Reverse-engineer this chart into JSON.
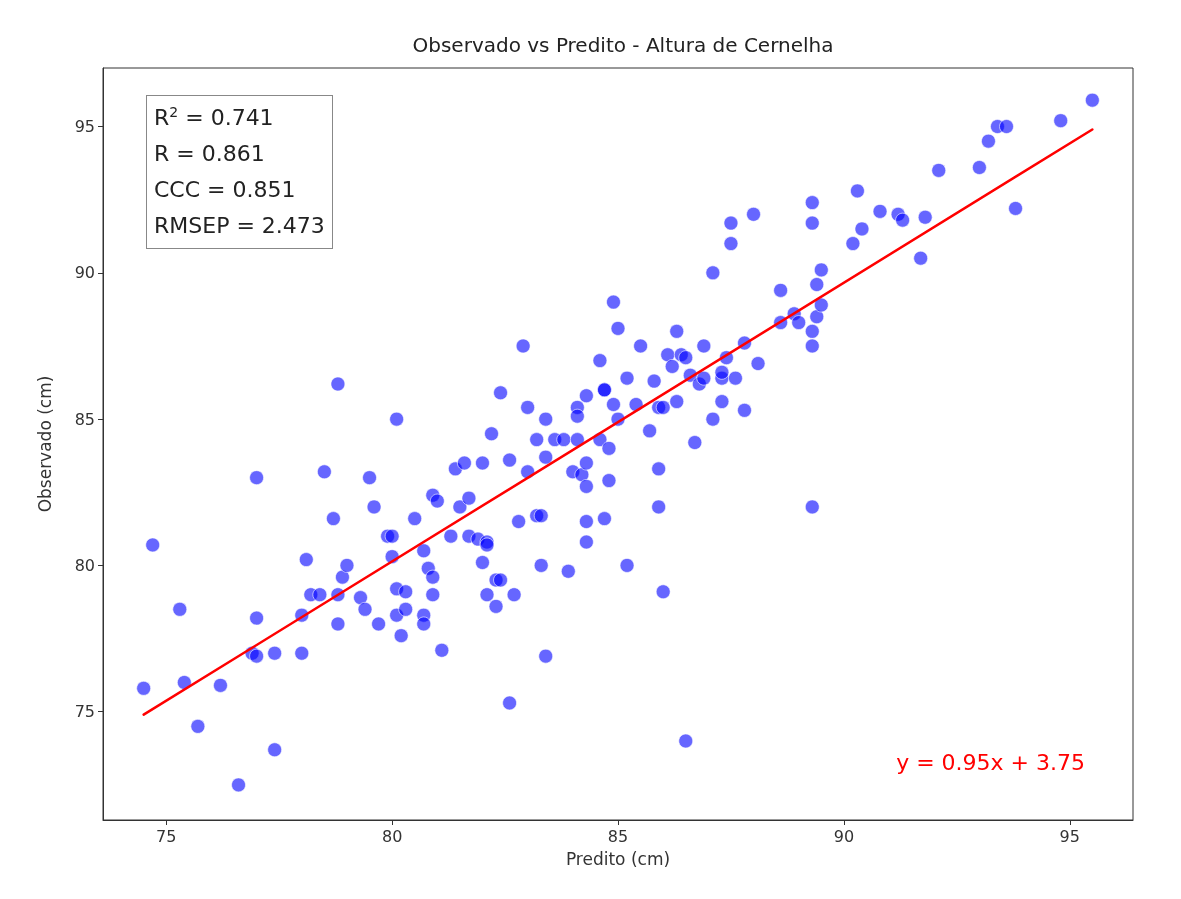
{
  "chart_data": {
    "type": "scatter",
    "title": "Observado vs Predito - Altura de Cernelha",
    "xlabel": "Predito (cm)",
    "ylabel": "Observado (cm)",
    "xlim": [
      73.6,
      96.4
    ],
    "ylim": [
      71.3,
      97
    ],
    "xticks": [
      75,
      80,
      85,
      90,
      95
    ],
    "yticks": [
      75,
      80,
      85,
      90,
      95
    ],
    "grid": false,
    "marker": "circle",
    "annotations": [
      "R$^{2}$ = 0.741\nR = 0.861\nCCC = 0.851\nRMSEP = 2.473",
      "y = 0.95x + 3.75"
    ],
    "series": [
      {
        "color": "#0000ff",
        "x": [
          74.5,
          74.7,
          75.3,
          75.4,
          75.7,
          76.2,
          76.6,
          76.9,
          77.0,
          77.0,
          77.0,
          77.4,
          77.4,
          78.0,
          78.0,
          78.1,
          78.2,
          78.5,
          78.4,
          78.7,
          78.8,
          78.8,
          78.8,
          78.9,
          79.0,
          79.3,
          79.4,
          79.5,
          79.6,
          79.7,
          79.9,
          80.0,
          80.0,
          80.1,
          80.1,
          80.1,
          80.2,
          80.3,
          80.3,
          80.5,
          80.7,
          80.7,
          80.7,
          80.8,
          80.9,
          80.9,
          80.9,
          81.0,
          81.1,
          81.3,
          81.4,
          81.5,
          81.6,
          81.7,
          81.7,
          81.9,
          82.0,
          82.0,
          82.1,
          82.1,
          82.1,
          82.2,
          82.3,
          82.3,
          82.4,
          82.4,
          82.6,
          82.6,
          82.7,
          82.8,
          82.9,
          83.0,
          83.0,
          83.2,
          83.2,
          83.3,
          83.3,
          83.4,
          83.4,
          83.4,
          83.6,
          83.8,
          83.9,
          84.0,
          84.1,
          84.1,
          84.1,
          84.2,
          84.3,
          84.3,
          84.3,
          84.3,
          84.3,
          84.6,
          84.6,
          84.7,
          84.7,
          84.7,
          84.8,
          84.8,
          84.9,
          84.9,
          85.0,
          85.0,
          85.2,
          85.2,
          85.4,
          85.5,
          85.7,
          85.8,
          85.9,
          85.9,
          85.9,
          86.0,
          86.0,
          86.1,
          86.2,
          86.3,
          86.3,
          86.4,
          86.5,
          86.5,
          86.6,
          86.7,
          86.8,
          86.9,
          86.9,
          87.1,
          87.1,
          87.3,
          87.3,
          87.3,
          87.4,
          87.5,
          87.5,
          87.6,
          87.8,
          87.8,
          88.0,
          88.1,
          88.6,
          88.6,
          88.9,
          89.0,
          89.3,
          89.3,
          89.3,
          89.3,
          89.3,
          89.4,
          89.4,
          89.5,
          89.5,
          90.2,
          90.3,
          90.4,
          90.8,
          91.2,
          91.3,
          91.7,
          91.8,
          92.1,
          93.0,
          93.2,
          93.4,
          93.6,
          93.8,
          94.8,
          95.5
        ],
        "values": [
          75.8,
          80.7,
          78.5,
          76.0,
          74.5,
          75.9,
          72.5,
          77.0,
          83.0,
          78.2,
          76.9,
          73.7,
          77.0,
          77.0,
          78.3,
          80.2,
          79.0,
          83.2,
          79.0,
          81.6,
          78.0,
          79.0,
          86.2,
          79.6,
          80.0,
          78.9,
          78.5,
          83.0,
          82.0,
          78.0,
          81.0,
          81.0,
          80.3,
          79.2,
          78.3,
          85.0,
          77.6,
          79.1,
          78.5,
          81.6,
          80.5,
          78.3,
          78.0,
          79.9,
          79.6,
          79.0,
          82.4,
          82.2,
          77.1,
          81.0,
          83.3,
          82.0,
          83.5,
          82.3,
          81.0,
          80.9,
          83.5,
          80.1,
          80.8,
          80.7,
          79.0,
          84.5,
          78.6,
          79.5,
          79.5,
          85.9,
          75.3,
          83.6,
          79.0,
          81.5,
          87.5,
          85.4,
          83.2,
          84.3,
          81.7,
          81.7,
          80.0,
          85.0,
          83.7,
          76.9,
          84.3,
          84.3,
          79.8,
          83.2,
          85.4,
          85.1,
          84.3,
          83.1,
          85.8,
          83.5,
          82.7,
          81.5,
          80.8,
          87.0,
          84.3,
          86.0,
          86.0,
          81.6,
          84.0,
          82.9,
          85.5,
          89.0,
          85.0,
          88.1,
          86.4,
          80.0,
          85.5,
          87.5,
          84.6,
          86.3,
          85.4,
          83.3,
          82.0,
          79.1,
          85.4,
          87.2,
          86.8,
          88.0,
          85.6,
          87.2,
          87.1,
          74.0,
          86.5,
          84.2,
          86.2,
          86.4,
          87.5,
          90.0,
          85.0,
          86.4,
          85.6,
          86.6,
          87.1,
          91.0,
          91.7,
          86.4,
          85.3,
          87.6,
          92.0,
          86.9,
          88.3,
          89.4,
          88.6,
          88.3,
          92.4,
          91.7,
          88.0,
          87.5,
          82.0,
          89.6,
          88.5,
          90.1,
          88.9,
          91.0,
          92.8,
          91.5,
          92.1,
          92.0,
          91.8,
          90.5,
          91.9,
          93.5,
          93.6,
          94.5,
          95.0,
          95.0,
          92.2,
          95.2,
          95.9
        ]
      },
      {
        "type": "line",
        "color": "#ff0000",
        "marker": "none",
        "line_style": "solid",
        "x": [
          74.5,
          95.5
        ],
        "values": [
          74.9,
          94.9
        ]
      }
    ]
  }
}
